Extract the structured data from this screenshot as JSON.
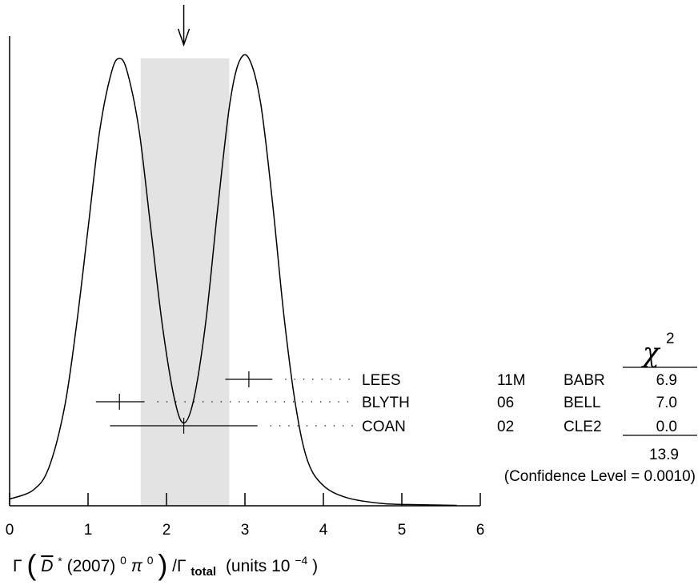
{
  "chart_data": {
    "type": "ideogram",
    "xlim": [
      0,
      6
    ],
    "x_ticks": [
      "0",
      "1",
      "2",
      "3",
      "4",
      "5",
      "6"
    ],
    "xlabel": {
      "gamma": "Γ",
      "dbar": "D",
      "star": "*",
      "mid": "(2007)",
      "sup0": "0",
      "pi": "π",
      "sup1": "0",
      "slash": ")/Γ",
      "total": "total",
      "units": "(units 10",
      "exp": "−4",
      "close": ")"
    },
    "average": {
      "value": 2.22,
      "band": [
        1.67,
        2.8
      ]
    },
    "measurements": [
      {
        "author": "LEES",
        "year": "11M",
        "experiment": "BABR",
        "value": 3.05,
        "lo": 2.75,
        "hi": 3.35,
        "chi2": "6.9"
      },
      {
        "author": "BLYTH",
        "year": "06",
        "experiment": "BELL",
        "value": 1.4,
        "lo": 1.1,
        "hi": 1.72,
        "chi2": "7.0"
      },
      {
        "author": "COAN",
        "year": "02",
        "experiment": "CLE2",
        "value": 2.22,
        "lo": 1.28,
        "hi": 3.16,
        "chi2": "0.0"
      }
    ],
    "chi2_header": {
      "symbol": "χ",
      "exponent": "2"
    },
    "chi2_total": "13.9",
    "confidence_level": "(Confidence Level = 0.0010)",
    "ideogram_curve": [
      [
        0.0,
        0.015
      ],
      [
        0.3,
        0.035
      ],
      [
        0.5,
        0.085
      ],
      [
        0.7,
        0.22
      ],
      [
        0.85,
        0.4
      ],
      [
        1.0,
        0.62
      ],
      [
        1.15,
        0.84
      ],
      [
        1.3,
        0.97
      ],
      [
        1.4,
        1.0
      ],
      [
        1.5,
        0.97
      ],
      [
        1.65,
        0.84
      ],
      [
        1.8,
        0.62
      ],
      [
        1.95,
        0.4
      ],
      [
        2.1,
        0.24
      ],
      [
        2.22,
        0.185
      ],
      [
        2.35,
        0.24
      ],
      [
        2.5,
        0.41
      ],
      [
        2.65,
        0.66
      ],
      [
        2.8,
        0.89
      ],
      [
        2.92,
        0.99
      ],
      [
        3.05,
        1.0
      ],
      [
        3.2,
        0.9
      ],
      [
        3.35,
        0.68
      ],
      [
        3.5,
        0.42
      ],
      [
        3.65,
        0.22
      ],
      [
        3.8,
        0.1
      ],
      [
        4.0,
        0.045
      ],
      [
        4.3,
        0.018
      ],
      [
        4.7,
        0.006
      ],
      [
        5.0,
        0.003
      ],
      [
        5.7,
        0.001
      ]
    ]
  }
}
